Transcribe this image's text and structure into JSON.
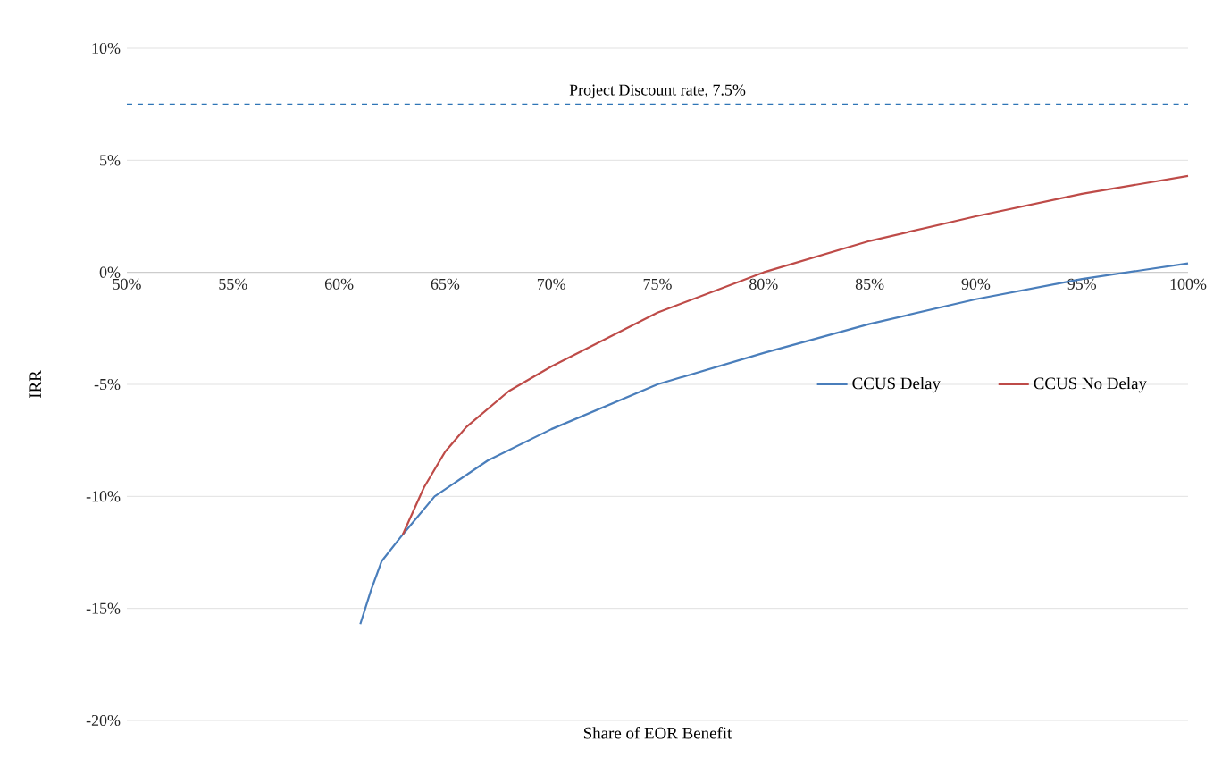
{
  "chart_data": {
    "type": "line",
    "xlabel": "Share of EOR Benefit",
    "ylabel": "IRR",
    "xlim": [
      50,
      100
    ],
    "ylim": [
      -20,
      10
    ],
    "xticks": [
      {
        "value": 50,
        "label": "50%"
      },
      {
        "value": 55,
        "label": "55%"
      },
      {
        "value": 60,
        "label": "60%"
      },
      {
        "value": 65,
        "label": "65%"
      },
      {
        "value": 70,
        "label": "70%"
      },
      {
        "value": 75,
        "label": "75%"
      },
      {
        "value": 80,
        "label": "80%"
      },
      {
        "value": 85,
        "label": "85%"
      },
      {
        "value": 90,
        "label": "90%"
      },
      {
        "value": 95,
        "label": "95%"
      },
      {
        "value": 100,
        "label": "100%"
      }
    ],
    "yticks": [
      {
        "value": -20,
        "label": "-20%"
      },
      {
        "value": -15,
        "label": "-15%"
      },
      {
        "value": -10,
        "label": "-10%"
      },
      {
        "value": -5,
        "label": "-5%"
      },
      {
        "value": 0,
        "label": "0%"
      },
      {
        "value": 5,
        "label": "5%"
      },
      {
        "value": 10,
        "label": "10%"
      }
    ],
    "grid": "y",
    "legend": "right",
    "marker": "none",
    "line_style": "solid",
    "series": [
      {
        "name": "CCUS Delay",
        "color": "#4a7ebb",
        "x": [
          61,
          61.5,
          62,
          63,
          64.5,
          67,
          70,
          75,
          80,
          85,
          90,
          95,
          100
        ],
        "values": [
          -15.7,
          -14.2,
          -12.9,
          -11.7,
          -10.0,
          -8.4,
          -7.0,
          -5.0,
          -3.6,
          -2.3,
          -1.2,
          -0.3,
          0.4
        ]
      },
      {
        "name": "CCUS No Delay",
        "color": "#be4b48",
        "x": [
          63,
          64,
          65,
          66,
          68,
          70,
          75,
          80,
          85,
          90,
          95,
          100
        ],
        "values": [
          -11.7,
          -9.6,
          -8.0,
          -6.9,
          -5.3,
          -4.2,
          -1.8,
          0,
          1.4,
          2.5,
          3.5,
          4.3
        ]
      }
    ],
    "ref_lines": [
      {
        "axis": "y",
        "value": 7.5,
        "label": "Project Discount rate, 7.5%",
        "color": "#2e75b6",
        "line_style": "dashed"
      }
    ]
  }
}
